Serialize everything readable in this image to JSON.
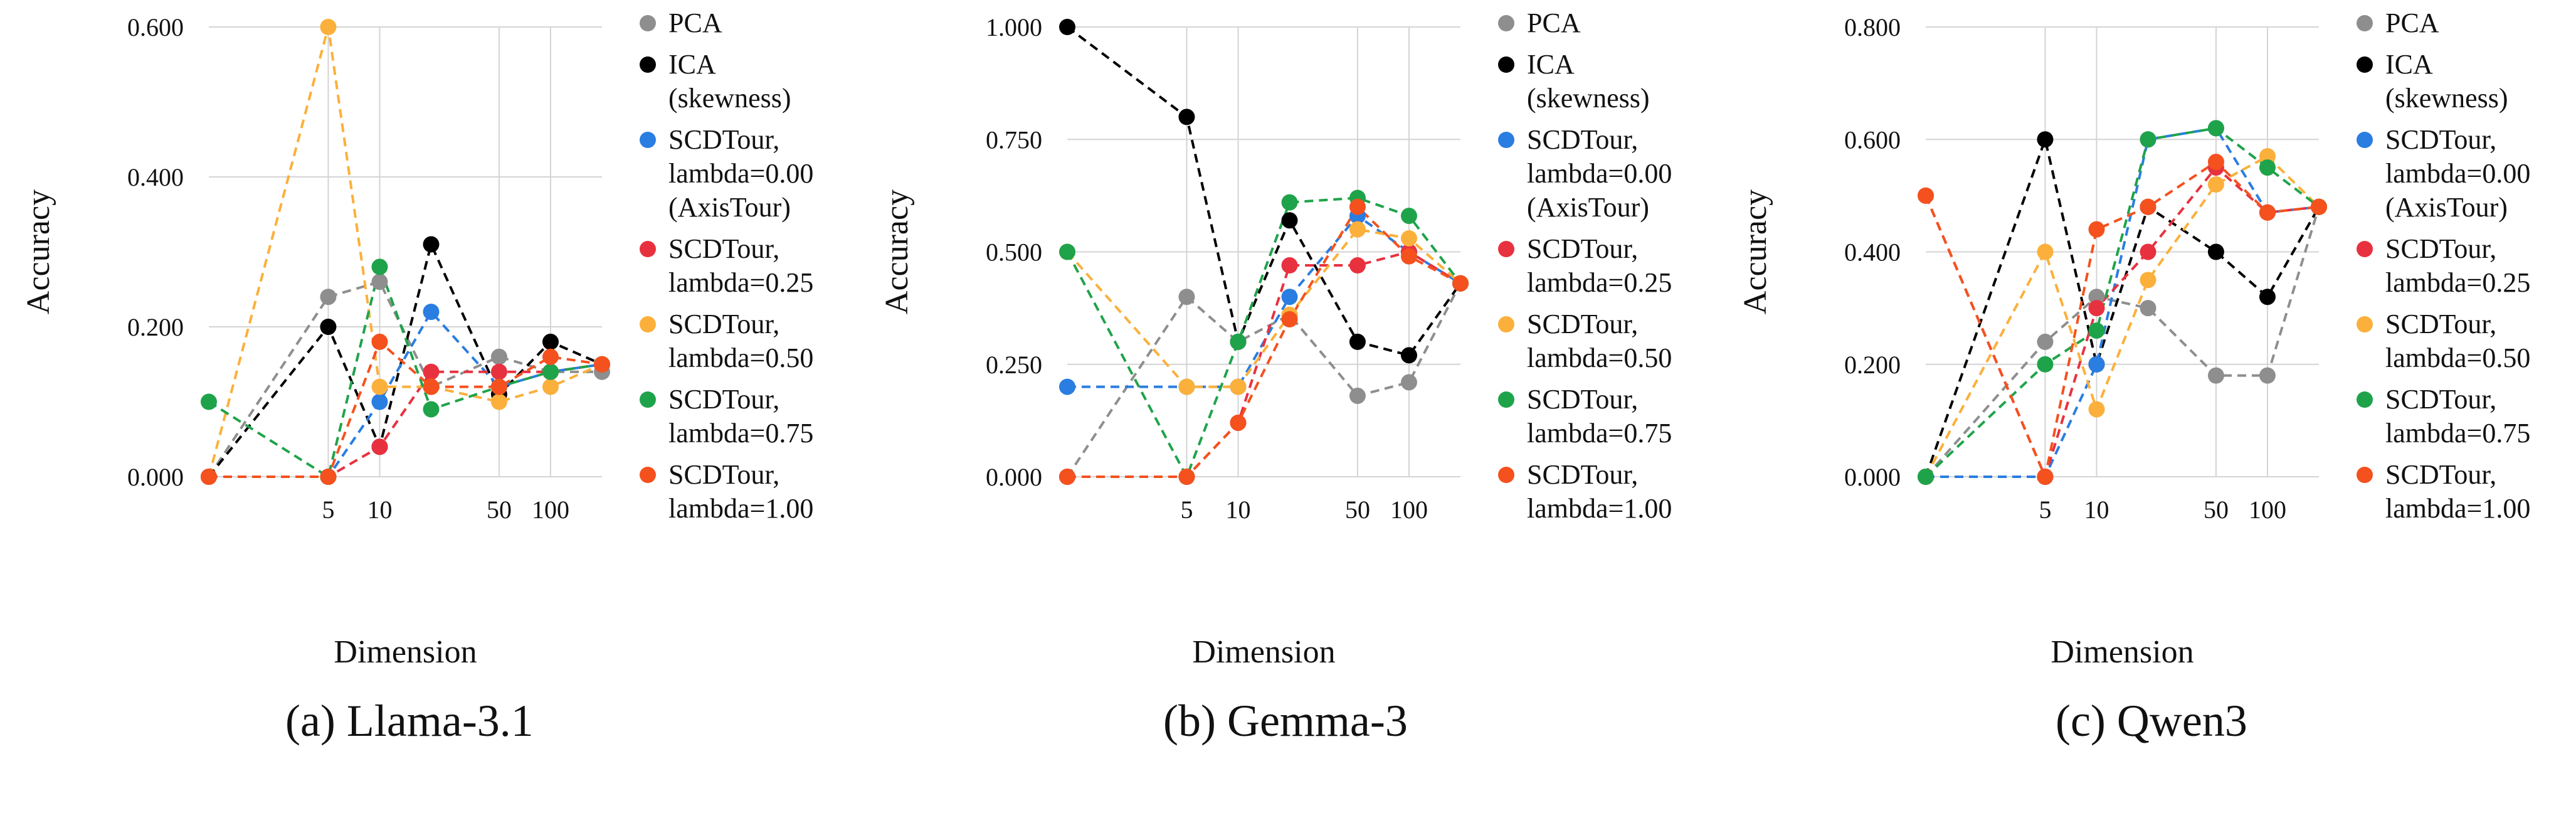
{
  "chart_data": [
    {
      "type": "line",
      "caption": "(a) Llama-3.1",
      "xlabel": "Dimension",
      "ylabel": "Accuracy",
      "x": [
        1,
        5,
        10,
        20,
        50,
        100,
        200
      ],
      "xticks": [
        "5",
        "10",
        "50",
        "100"
      ],
      "xtick_values": [
        5,
        10,
        50,
        100
      ],
      "ylim": [
        0,
        0.6
      ],
      "yticks": [
        "0.000",
        "0.200",
        "0.400",
        "0.600"
      ],
      "ytick_values": [
        0,
        0.2,
        0.4,
        0.6
      ],
      "series": [
        {
          "name": "PCA",
          "color": "#8e8e8e",
          "values": [
            0.0,
            0.24,
            0.26,
            0.12,
            0.16,
            0.14,
            0.14
          ]
        },
        {
          "name": "ICA (skewness)",
          "color": "#000000",
          "values": [
            0.0,
            0.2,
            0.04,
            0.31,
            0.11,
            0.18,
            0.15
          ]
        },
        {
          "name": "SCDTour, lambda=0.00 (AxisTour)",
          "color": "#2a7de1",
          "values": [
            0.0,
            0.0,
            0.1,
            0.22,
            0.12,
            0.14,
            0.15
          ]
        },
        {
          "name": "SCDTour, lambda=0.25",
          "color": "#e8313f",
          "values": [
            0.0,
            0.0,
            0.04,
            0.14,
            0.14,
            0.14,
            0.15
          ]
        },
        {
          "name": "SCDTour, lambda=0.50",
          "color": "#fbb03b",
          "values": [
            0.0,
            0.6,
            0.12,
            0.12,
            0.1,
            0.12,
            0.15
          ]
        },
        {
          "name": "SCDTour, lambda=0.75",
          "color": "#1fa34a",
          "values": [
            0.1,
            0.0,
            0.28,
            0.09,
            0.12,
            0.14,
            0.15
          ]
        },
        {
          "name": "SCDTour, lambda=1.00",
          "color": "#f4511e",
          "values": [
            0.0,
            0.0,
            0.18,
            0.12,
            0.12,
            0.16,
            0.15
          ]
        }
      ]
    },
    {
      "type": "line",
      "caption": "(b) Gemma-3",
      "xlabel": "Dimension",
      "ylabel": "Accuracy",
      "x": [
        1,
        5,
        10,
        20,
        50,
        100,
        200
      ],
      "xticks": [
        "5",
        "10",
        "50",
        "100"
      ],
      "xtick_values": [
        5,
        10,
        50,
        100
      ],
      "ylim": [
        0,
        1.0
      ],
      "yticks": [
        "0.000",
        "0.250",
        "0.500",
        "0.750",
        "1.000"
      ],
      "ytick_values": [
        0,
        0.25,
        0.5,
        0.75,
        1.0
      ],
      "series": [
        {
          "name": "PCA",
          "color": "#8e8e8e",
          "values": [
            0.0,
            0.4,
            0.3,
            0.36,
            0.18,
            0.21,
            0.43
          ]
        },
        {
          "name": "ICA (skewness)",
          "color": "#000000",
          "values": [
            1.0,
            0.8,
            0.3,
            0.57,
            0.3,
            0.27,
            0.43
          ]
        },
        {
          "name": "SCDTour, lambda=0.00 (AxisTour)",
          "color": "#2a7de1",
          "values": [
            0.2,
            0.2,
            0.2,
            0.4,
            0.58,
            0.5,
            0.43
          ]
        },
        {
          "name": "SCDTour, lambda=0.25",
          "color": "#e8313f",
          "values": [
            0.0,
            0.0,
            0.12,
            0.47,
            0.47,
            0.5,
            0.43
          ]
        },
        {
          "name": "SCDTour, lambda=0.50",
          "color": "#fbb03b",
          "values": [
            0.5,
            0.2,
            0.2,
            0.36,
            0.55,
            0.53,
            0.43
          ]
        },
        {
          "name": "SCDTour, lambda=0.75",
          "color": "#1fa34a",
          "values": [
            0.5,
            0.0,
            0.3,
            0.61,
            0.62,
            0.58,
            0.43
          ]
        },
        {
          "name": "SCDTour, lambda=1.00",
          "color": "#f4511e",
          "values": [
            0.0,
            0.0,
            0.12,
            0.35,
            0.6,
            0.49,
            0.43
          ]
        }
      ]
    },
    {
      "type": "line",
      "caption": "(c) Qwen3",
      "xlabel": "Dimension",
      "ylabel": "Accuracy",
      "x": [
        1,
        5,
        10,
        20,
        50,
        100,
        200
      ],
      "xticks": [
        "5",
        "10",
        "50",
        "100"
      ],
      "xtick_values": [
        5,
        10,
        50,
        100
      ],
      "ylim": [
        0,
        0.8
      ],
      "yticks": [
        "0.000",
        "0.200",
        "0.400",
        "0.600",
        "0.800"
      ],
      "ytick_values": [
        0,
        0.2,
        0.4,
        0.6,
        0.8
      ],
      "series": [
        {
          "name": "PCA",
          "color": "#8e8e8e",
          "values": [
            0.0,
            0.24,
            0.32,
            0.3,
            0.18,
            0.18,
            0.48
          ]
        },
        {
          "name": "ICA (skewness)",
          "color": "#000000",
          "values": [
            0.0,
            0.6,
            0.2,
            0.48,
            0.4,
            0.32,
            0.48
          ]
        },
        {
          "name": "SCDTour, lambda=0.00 (AxisTour)",
          "color": "#2a7de1",
          "values": [
            0.0,
            0.0,
            0.2,
            0.6,
            0.62,
            0.47,
            0.48
          ]
        },
        {
          "name": "SCDTour, lambda=0.25",
          "color": "#e8313f",
          "values": [
            0.5,
            0.0,
            0.3,
            0.4,
            0.55,
            0.47,
            0.48
          ]
        },
        {
          "name": "SCDTour, lambda=0.50",
          "color": "#fbb03b",
          "values": [
            0.0,
            0.4,
            0.12,
            0.35,
            0.52,
            0.57,
            0.48
          ]
        },
        {
          "name": "SCDTour, lambda=0.75",
          "color": "#1fa34a",
          "values": [
            0.0,
            0.2,
            0.26,
            0.6,
            0.62,
            0.55,
            0.48
          ]
        },
        {
          "name": "SCDTour, lambda=1.00",
          "color": "#f4511e",
          "values": [
            0.5,
            0.0,
            0.44,
            0.48,
            0.56,
            0.47,
            0.48
          ]
        }
      ]
    }
  ],
  "legend": [
    {
      "lines": [
        "PCA"
      ],
      "color": "#8e8e8e"
    },
    {
      "lines": [
        "ICA",
        "(skewness)"
      ],
      "color": "#000000"
    },
    {
      "lines": [
        "SCDTour,",
        "lambda=0.00",
        "(AxisTour)"
      ],
      "color": "#2a7de1"
    },
    {
      "lines": [
        "SCDTour,",
        "lambda=0.25"
      ],
      "color": "#e8313f"
    },
    {
      "lines": [
        "SCDTour,",
        "lambda=0.50"
      ],
      "color": "#fbb03b"
    },
    {
      "lines": [
        "SCDTour,",
        "lambda=0.75"
      ],
      "color": "#1fa34a"
    },
    {
      "lines": [
        "SCDTour,",
        "lambda=1.00"
      ],
      "color": "#f4511e"
    }
  ]
}
